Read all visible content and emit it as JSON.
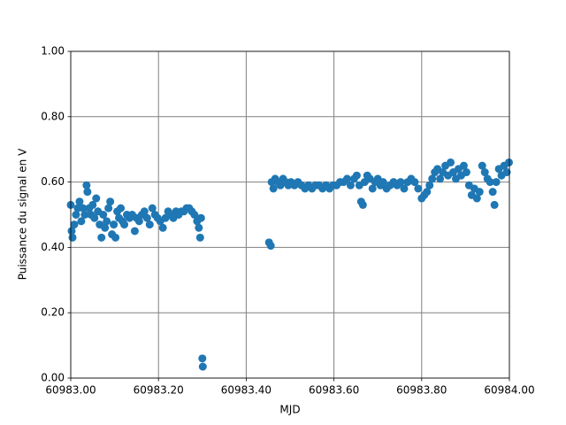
{
  "chart_data": {
    "type": "scatter",
    "xlabel": "MJD",
    "ylabel": "Puissance du signal en V",
    "color": "#1f77b4",
    "grid": true,
    "xlim": [
      60983.0,
      60984.0
    ],
    "xticks": [
      {
        "value": 60983.0,
        "label": "60983.00"
      },
      {
        "value": 60983.2,
        "label": "60983.20"
      },
      {
        "value": 60983.4,
        "label": "60983.40"
      },
      {
        "value": 60983.6,
        "label": "60983.60"
      },
      {
        "value": 60983.8,
        "label": "60983.80"
      },
      {
        "value": 60984.0,
        "label": "60984.00"
      }
    ],
    "ylim": [
      0,
      1
    ],
    "yticks": [
      {
        "value": 0,
        "label": "0.00"
      },
      {
        "value": 0.2,
        "label": "0.20"
      },
      {
        "value": 0.4,
        "label": "0.40"
      },
      {
        "value": 0.6,
        "label": "0.60"
      },
      {
        "value": 0.8,
        "label": "0.80"
      },
      {
        "value": 1,
        "label": "1.00"
      }
    ],
    "x": [
      60983.0,
      60983.002,
      60983.004,
      60983.008,
      60983.012,
      60983.016,
      60983.02,
      60983.024,
      60983.028,
      60983.032,
      60983.036,
      60983.038,
      60983.042,
      60983.046,
      60983.05,
      60983.054,
      60983.058,
      60983.062,
      60983.066,
      60983.07,
      60983.074,
      60983.078,
      60983.082,
      60983.086,
      60983.09,
      60983.094,
      60983.098,
      60983.102,
      60983.106,
      60983.11,
      60983.114,
      60983.118,
      60983.122,
      60983.128,
      60983.134,
      60983.14,
      60983.146,
      60983.15,
      60983.156,
      60983.162,
      60983.168,
      60983.174,
      60983.18,
      60983.186,
      60983.192,
      60983.198,
      60983.204,
      60983.21,
      60983.216,
      60983.222,
      60983.228,
      60983.234,
      60983.24,
      60983.246,
      60983.252,
      60983.258,
      60983.264,
      60983.27,
      60983.276,
      60983.282,
      60983.288,
      60983.292,
      60983.295,
      60983.297,
      60983.3,
      60983.301,
      60983.452,
      60983.456,
      60983.458,
      60983.462,
      60983.466,
      60983.472,
      60983.478,
      60983.484,
      60983.49,
      60983.496,
      60983.502,
      60983.51,
      60983.518,
      60983.526,
      60983.534,
      60983.542,
      60983.55,
      60983.558,
      60983.566,
      60983.574,
      60983.582,
      60983.59,
      60983.598,
      60983.606,
      60983.614,
      60983.622,
      60983.63,
      60983.638,
      60983.646,
      60983.652,
      60983.658,
      60983.662,
      60983.666,
      60983.67,
      60983.676,
      60983.682,
      60983.688,
      60983.694,
      60983.7,
      60983.706,
      60983.712,
      60983.72,
      60983.728,
      60983.736,
      60983.744,
      60983.752,
      60983.76,
      60983.768,
      60983.776,
      60983.784,
      60983.792,
      60983.8,
      60983.806,
      60983.812,
      60983.818,
      60983.824,
      60983.83,
      60983.836,
      60983.842,
      60983.848,
      60983.854,
      60983.86,
      60983.866,
      60983.872,
      60983.878,
      60983.884,
      60983.89,
      60983.896,
      60983.902,
      60983.908,
      60983.914,
      60983.92,
      60983.926,
      60983.932,
      60983.938,
      60983.944,
      60983.95,
      60983.956,
      60983.962,
      60983.966,
      60983.97,
      60983.976,
      60983.982,
      60983.988,
      60983.994,
      60983.999
    ],
    "values": [
      0.53,
      0.45,
      0.43,
      0.47,
      0.5,
      0.52,
      0.54,
      0.48,
      0.52,
      0.5,
      0.59,
      0.57,
      0.52,
      0.5,
      0.53,
      0.49,
      0.55,
      0.51,
      0.47,
      0.43,
      0.5,
      0.46,
      0.48,
      0.52,
      0.54,
      0.44,
      0.47,
      0.43,
      0.51,
      0.49,
      0.52,
      0.48,
      0.47,
      0.5,
      0.49,
      0.5,
      0.45,
      0.49,
      0.48,
      0.5,
      0.51,
      0.49,
      0.47,
      0.52,
      0.5,
      0.49,
      0.48,
      0.46,
      0.49,
      0.51,
      0.5,
      0.49,
      0.51,
      0.5,
      0.51,
      0.51,
      0.52,
      0.52,
      0.51,
      0.5,
      0.48,
      0.46,
      0.43,
      0.49,
      0.06,
      0.035,
      0.415,
      0.405,
      0.6,
      0.58,
      0.61,
      0.6,
      0.59,
      0.61,
      0.6,
      0.59,
      0.6,
      0.59,
      0.6,
      0.59,
      0.58,
      0.59,
      0.58,
      0.59,
      0.59,
      0.58,
      0.59,
      0.58,
      0.59,
      0.59,
      0.6,
      0.6,
      0.61,
      0.59,
      0.61,
      0.62,
      0.59,
      0.54,
      0.53,
      0.6,
      0.62,
      0.61,
      0.58,
      0.6,
      0.61,
      0.59,
      0.6,
      0.58,
      0.59,
      0.6,
      0.59,
      0.6,
      0.58,
      0.6,
      0.61,
      0.6,
      0.58,
      0.55,
      0.56,
      0.57,
      0.59,
      0.61,
      0.63,
      0.64,
      0.61,
      0.63,
      0.65,
      0.62,
      0.66,
      0.63,
      0.61,
      0.64,
      0.62,
      0.65,
      0.63,
      0.59,
      0.56,
      0.58,
      0.55,
      0.57,
      0.65,
      0.63,
      0.61,
      0.6,
      0.57,
      0.53,
      0.6,
      0.64,
      0.62,
      0.65,
      0.63,
      0.66
    ]
  }
}
